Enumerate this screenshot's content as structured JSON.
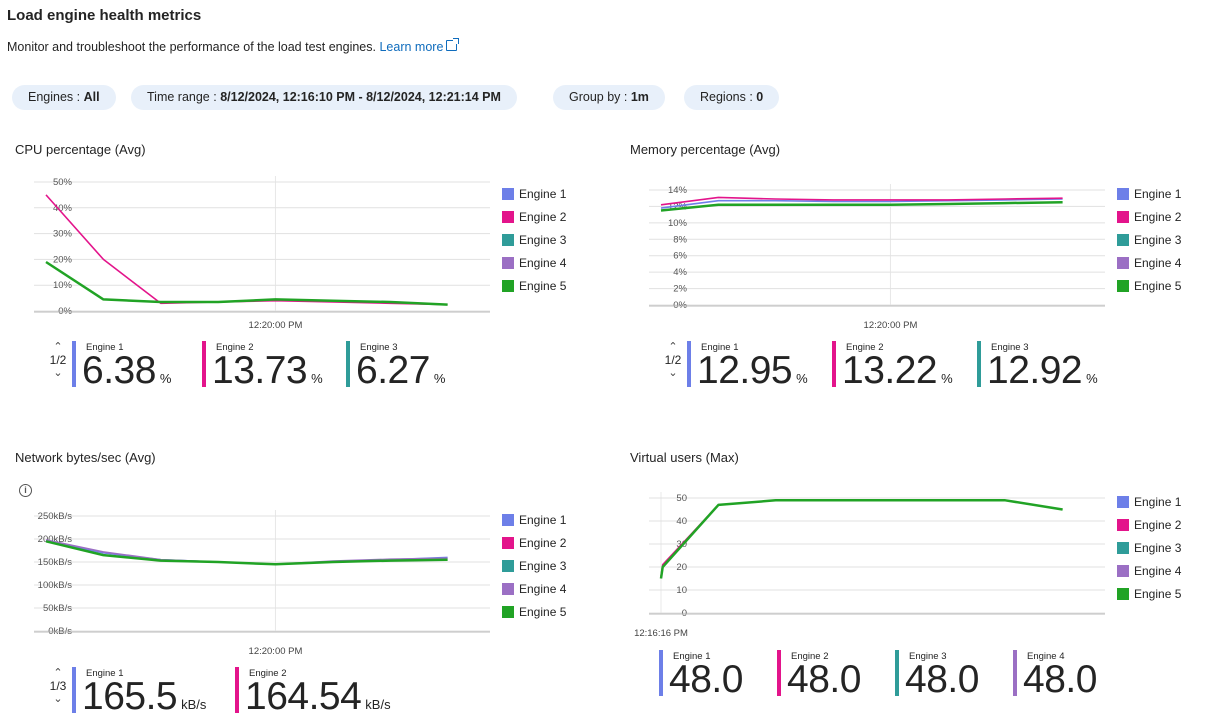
{
  "header": {
    "title": "Load engine health metrics",
    "subtitle": "Monitor and troubleshoot the performance of the load test engines.",
    "learn_more": "Learn more"
  },
  "filters": {
    "engines_label": "Engines : ",
    "engines_value": "All",
    "time_label": "Time range : ",
    "time_value": "8/12/2024, 12:16:10 PM - 8/12/2024, 12:21:14 PM",
    "group_label": "Group by : ",
    "group_value": "1m",
    "regions_label": "Regions : ",
    "regions_value": "0"
  },
  "colors": {
    "engine1": "#6d7fe8",
    "engine2": "#e3148b",
    "engine3": "#2f9c99",
    "engine4": "#9b6fc4",
    "engine5": "#21a325"
  },
  "legend": [
    "Engine 1",
    "Engine 2",
    "Engine 3",
    "Engine 4",
    "Engine 5"
  ],
  "panels": {
    "cpu": {
      "title": "CPU percentage (Avg)",
      "pager": "1/2",
      "tiles": [
        {
          "label": "Engine 1",
          "value": "6.38",
          "unit": "%"
        },
        {
          "label": "Engine 2",
          "value": "13.73",
          "unit": "%"
        },
        {
          "label": "Engine 3",
          "value": "6.27",
          "unit": "%"
        }
      ]
    },
    "memory": {
      "title": "Memory percentage (Avg)",
      "pager": "1/2",
      "tiles": [
        {
          "label": "Engine 1",
          "value": "12.95",
          "unit": "%"
        },
        {
          "label": "Engine 2",
          "value": "13.22",
          "unit": "%"
        },
        {
          "label": "Engine 3",
          "value": "12.92",
          "unit": "%"
        }
      ]
    },
    "network": {
      "title": "Network bytes/sec (Avg)",
      "pager": "1/3",
      "tiles": [
        {
          "label": "Engine 1",
          "value": "165.5",
          "unit": "kB/s"
        },
        {
          "label": "Engine 2",
          "value": "164.54",
          "unit": "kB/s"
        }
      ]
    },
    "vusers": {
      "title": "Virtual users (Max)",
      "tiles": [
        {
          "label": "Engine 1",
          "value": "48.0"
        },
        {
          "label": "Engine 2",
          "value": "48.0"
        },
        {
          "label": "Engine 3",
          "value": "48.0"
        },
        {
          "label": "Engine 4",
          "value": "48.0"
        }
      ]
    }
  },
  "chart_data": [
    {
      "type": "line",
      "title": "CPU percentage (Avg)",
      "yticks": [
        "0%",
        "10%",
        "20%",
        "30%",
        "40%",
        "50%"
      ],
      "ylim": [
        0,
        50
      ],
      "xticks": [
        {
          "label": "12:20:00 PM",
          "x": 4
        }
      ],
      "xlim": [
        0,
        7.6
      ],
      "series": [
        {
          "name": "Engine 2",
          "color": "#e3148b",
          "x": [
            0,
            1,
            2,
            3,
            4,
            5,
            6,
            7
          ],
          "values": [
            45,
            20,
            3,
            3.5,
            4,
            3.5,
            3,
            2.5
          ]
        },
        {
          "name": "Engine 5",
          "color": "#21a325",
          "x": [
            0,
            1,
            2,
            3,
            4,
            5,
            6,
            7
          ],
          "values": [
            19,
            4.5,
            3.5,
            3.5,
            4.5,
            4,
            3.5,
            2.5
          ]
        }
      ]
    },
    {
      "type": "line",
      "title": "Memory percentage (Avg)",
      "yticks": [
        "0%",
        "2%",
        "4%",
        "6%",
        "8%",
        "10%",
        "12%",
        "14%"
      ],
      "ylim": [
        0,
        14
      ],
      "xticks": [
        {
          "label": "12:20:00 PM",
          "x": 4
        }
      ],
      "xlim": [
        0,
        7.6
      ],
      "series": [
        {
          "name": "Engine 1",
          "color": "#6d7fe8",
          "x": [
            0,
            1,
            2,
            3,
            4,
            5,
            6,
            7
          ],
          "values": [
            11.8,
            12.7,
            12.7,
            12.6,
            12.6,
            12.7,
            12.8,
            12.9
          ]
        },
        {
          "name": "Engine 2",
          "color": "#e3148b",
          "x": [
            0,
            1,
            2,
            3,
            4,
            5,
            6,
            7
          ],
          "values": [
            12.2,
            13.1,
            12.9,
            12.8,
            12.8,
            12.8,
            12.9,
            13.0
          ]
        },
        {
          "name": "Engine 5",
          "color": "#21a325",
          "x": [
            0,
            1,
            2,
            3,
            4,
            5,
            6,
            7
          ],
          "values": [
            11.5,
            12.2,
            12.2,
            12.2,
            12.2,
            12.3,
            12.4,
            12.5
          ]
        }
      ]
    },
    {
      "type": "line",
      "title": "Network bytes/sec (Avg)",
      "yticks": [
        "0kB/s",
        "50kB/s",
        "100kB/s",
        "150kB/s",
        "200kB/s",
        "250kB/s"
      ],
      "ylim": [
        0,
        250
      ],
      "xticks": [
        {
          "label": "12:20:00 PM",
          "x": 4
        }
      ],
      "xlim": [
        0,
        7.6
      ],
      "series": [
        {
          "name": "Engine 1",
          "color": "#6d7fe8",
          "x": [
            0,
            1,
            2,
            3,
            4,
            5,
            6,
            7
          ],
          "values": [
            195,
            170,
            155,
            150,
            145,
            150,
            155,
            160
          ]
        },
        {
          "name": "Engine 4",
          "color": "#9b6fc4",
          "x": [
            0,
            1,
            2,
            3,
            4,
            5,
            6,
            7
          ],
          "values": [
            198,
            172,
            155,
            150,
            145,
            152,
            156,
            158
          ]
        },
        {
          "name": "Engine 5",
          "color": "#21a325",
          "x": [
            0,
            1,
            2,
            3,
            4,
            5,
            6,
            7
          ],
          "values": [
            195,
            165,
            153,
            150,
            145,
            150,
            153,
            155
          ]
        }
      ]
    },
    {
      "type": "line",
      "title": "Virtual users (Max)",
      "yticks": [
        "0",
        "10",
        "20",
        "30",
        "40",
        "50"
      ],
      "ylim": [
        0,
        50
      ],
      "xticks": [
        {
          "label": "12:16:16 PM",
          "x": 0
        }
      ],
      "xlim": [
        0,
        7.6
      ],
      "series": [
        {
          "name": "Engine 2",
          "color": "#e3148b",
          "x": [
            0,
            0.03,
            1,
            2,
            3,
            4,
            5,
            6,
            7
          ],
          "values": [
            16,
            21,
            47,
            49,
            49,
            49,
            49,
            49,
            45
          ]
        },
        {
          "name": "Engine 5",
          "color": "#21a325",
          "x": [
            0,
            0.03,
            1,
            2,
            3,
            4,
            5,
            6,
            7
          ],
          "values": [
            15,
            20,
            47,
            49,
            49,
            49,
            49,
            49,
            45
          ]
        }
      ]
    }
  ]
}
